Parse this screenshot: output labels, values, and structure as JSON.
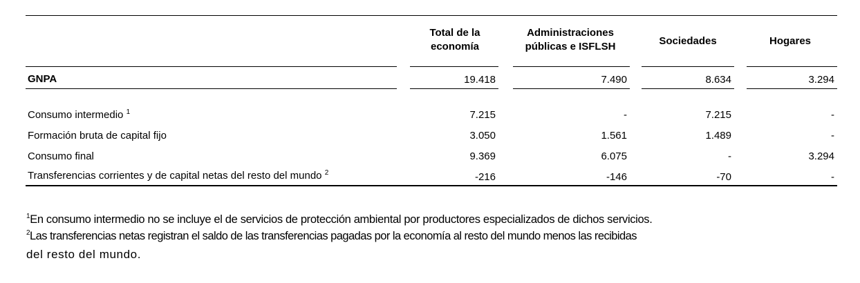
{
  "columns": [
    {
      "id": "total",
      "line1": "Total de la",
      "line2": "economía"
    },
    {
      "id": "admin",
      "line1": "Administraciones",
      "line2": "públicas e ISFLSH"
    },
    {
      "id": "soc",
      "line1": "Sociedades",
      "line2": ""
    },
    {
      "id": "hog",
      "line1": "Hogares",
      "line2": ""
    }
  ],
  "gnpa": {
    "label": "GNPA",
    "values": [
      "19.418",
      "7.490",
      "8.634",
      "3.294"
    ]
  },
  "rows": [
    {
      "label": "Consumo intermedio",
      "sup": "1",
      "values": [
        "7.215",
        "-",
        "7.215",
        "-"
      ]
    },
    {
      "label": "Formación bruta de capital fijo",
      "sup": "",
      "values": [
        "3.050",
        "1.561",
        "1.489",
        "-"
      ]
    },
    {
      "label": "Consumo final",
      "sup": "",
      "values": [
        "9.369",
        "6.075",
        "-",
        "3.294"
      ]
    },
    {
      "label": "Transferencias corrientes y de capital netas del resto del mundo",
      "sup": "2",
      "values": [
        "-216",
        "-146",
        "-70",
        "-"
      ]
    }
  ],
  "footnotes": [
    {
      "mark": "1",
      "text": "En consumo intermedio no se incluye el de servicios de protección ambiental por productores especializados de dichos servicios."
    },
    {
      "mark": "2",
      "text": "Las transferencias netas registran el saldo de las transferencias pagadas por la economía al resto del mundo menos las recibidas"
    },
    {
      "mark": "",
      "text": "del resto del mundo."
    }
  ]
}
